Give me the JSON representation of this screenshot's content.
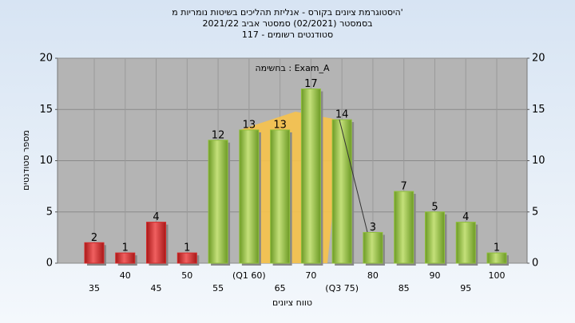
{
  "chart_data": {
    "type": "bar",
    "title": "היסטוגרמת ציונים בקורס - אנליזת תהליכים בשיטות נומריות מ'",
    "subtitle": "בסמסטר (02/2021) סמסטר אביב 2021/22",
    "subtitle2": "סטודנטים רשומים - 117",
    "annotation": "בחשימה : Exam_A",
    "x_label": "טווח ציונים",
    "y_label": "מספר סטודנטים",
    "categories": [
      "35",
      "40",
      "45",
      "50",
      "55",
      "(Q1 60)",
      "65",
      "70",
      "(Q3 75)",
      "80",
      "85",
      "90",
      "95",
      "100"
    ],
    "values": [
      2,
      1,
      4,
      1,
      12,
      13,
      13,
      17,
      14,
      3,
      7,
      5,
      4,
      1
    ],
    "colors": [
      "#d42a2a",
      "#d42a2a",
      "#d42a2a",
      "#d42a2a",
      "#8fbf3a",
      "#8fbf3a",
      "#8fbf3a",
      "#8fbf3a",
      "#8fbf3a",
      "#8fbf3a",
      "#8fbf3a",
      "#8fbf3a",
      "#8fbf3a",
      "#8fbf3a"
    ],
    "ylim": [
      0,
      20
    ],
    "yticks": [
      0,
      5,
      10,
      15,
      20
    ],
    "grid": true
  }
}
